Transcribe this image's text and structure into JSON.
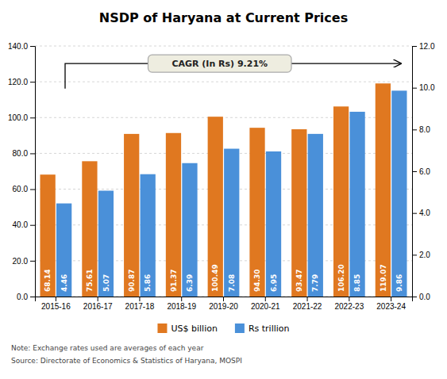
{
  "chart_data": {
    "type": "bar",
    "title": "NSDP of Haryana at Current Prices",
    "categories": [
      "2015-16",
      "2016-17",
      "2017-18",
      "2018-19",
      "2019-20",
      "2020-21",
      "2021-22",
      "2022-23",
      "2023-24"
    ],
    "series": [
      {
        "name": "US$ billion",
        "color": "#E07820",
        "values": [
          68.14,
          75.61,
          90.87,
          91.37,
          100.49,
          94.3,
          93.47,
          106.2,
          119.07
        ],
        "value_labels": [
          "68.14",
          "75.61",
          "90.87",
          "91.37",
          "100.49",
          "94.30",
          "93.47",
          "106.20",
          "119.07"
        ]
      },
      {
        "name": "Rs trillion",
        "color": "#4A90D9",
        "axis": "y2",
        "values": [
          4.46,
          5.07,
          5.86,
          6.39,
          7.08,
          6.95,
          7.79,
          8.85,
          9.86
        ],
        "value_labels": [
          "4.46",
          "5.07",
          "5.86",
          "6.39",
          "7.08",
          "6.95",
          "7.79",
          "8.85",
          "9.86"
        ]
      }
    ],
    "ylim": [
      0,
      140
    ],
    "yticks": [
      {
        "value": 0,
        "label": "0.0"
      },
      {
        "value": 20,
        "label": "20.0"
      },
      {
        "value": 40,
        "label": "40.0"
      },
      {
        "value": 60,
        "label": "60.0"
      },
      {
        "value": 80,
        "label": "80.0"
      },
      {
        "value": 100,
        "label": "100.0"
      },
      {
        "value": 120,
        "label": "120.0"
      },
      {
        "value": 140,
        "label": "140.0"
      }
    ],
    "y2lim": [
      0,
      12
    ],
    "y2ticks": [
      {
        "value": 0,
        "label": "0.0"
      },
      {
        "value": 2,
        "label": "2.0"
      },
      {
        "value": 4,
        "label": "4.0"
      },
      {
        "value": 6,
        "label": "6.0"
      },
      {
        "value": 8,
        "label": "8.0"
      },
      {
        "value": 10,
        "label": "10.0"
      },
      {
        "value": 12,
        "label": "12.0"
      }
    ],
    "grid": true,
    "legend": "bottom",
    "data_labels": true,
    "annotations": [
      "CAGR (In Rs) 9.21%",
      "Note: Exchange rates used are averages of each year",
      "Source: Directorate of Economics & Statistics of Haryana, MOSPI"
    ]
  }
}
